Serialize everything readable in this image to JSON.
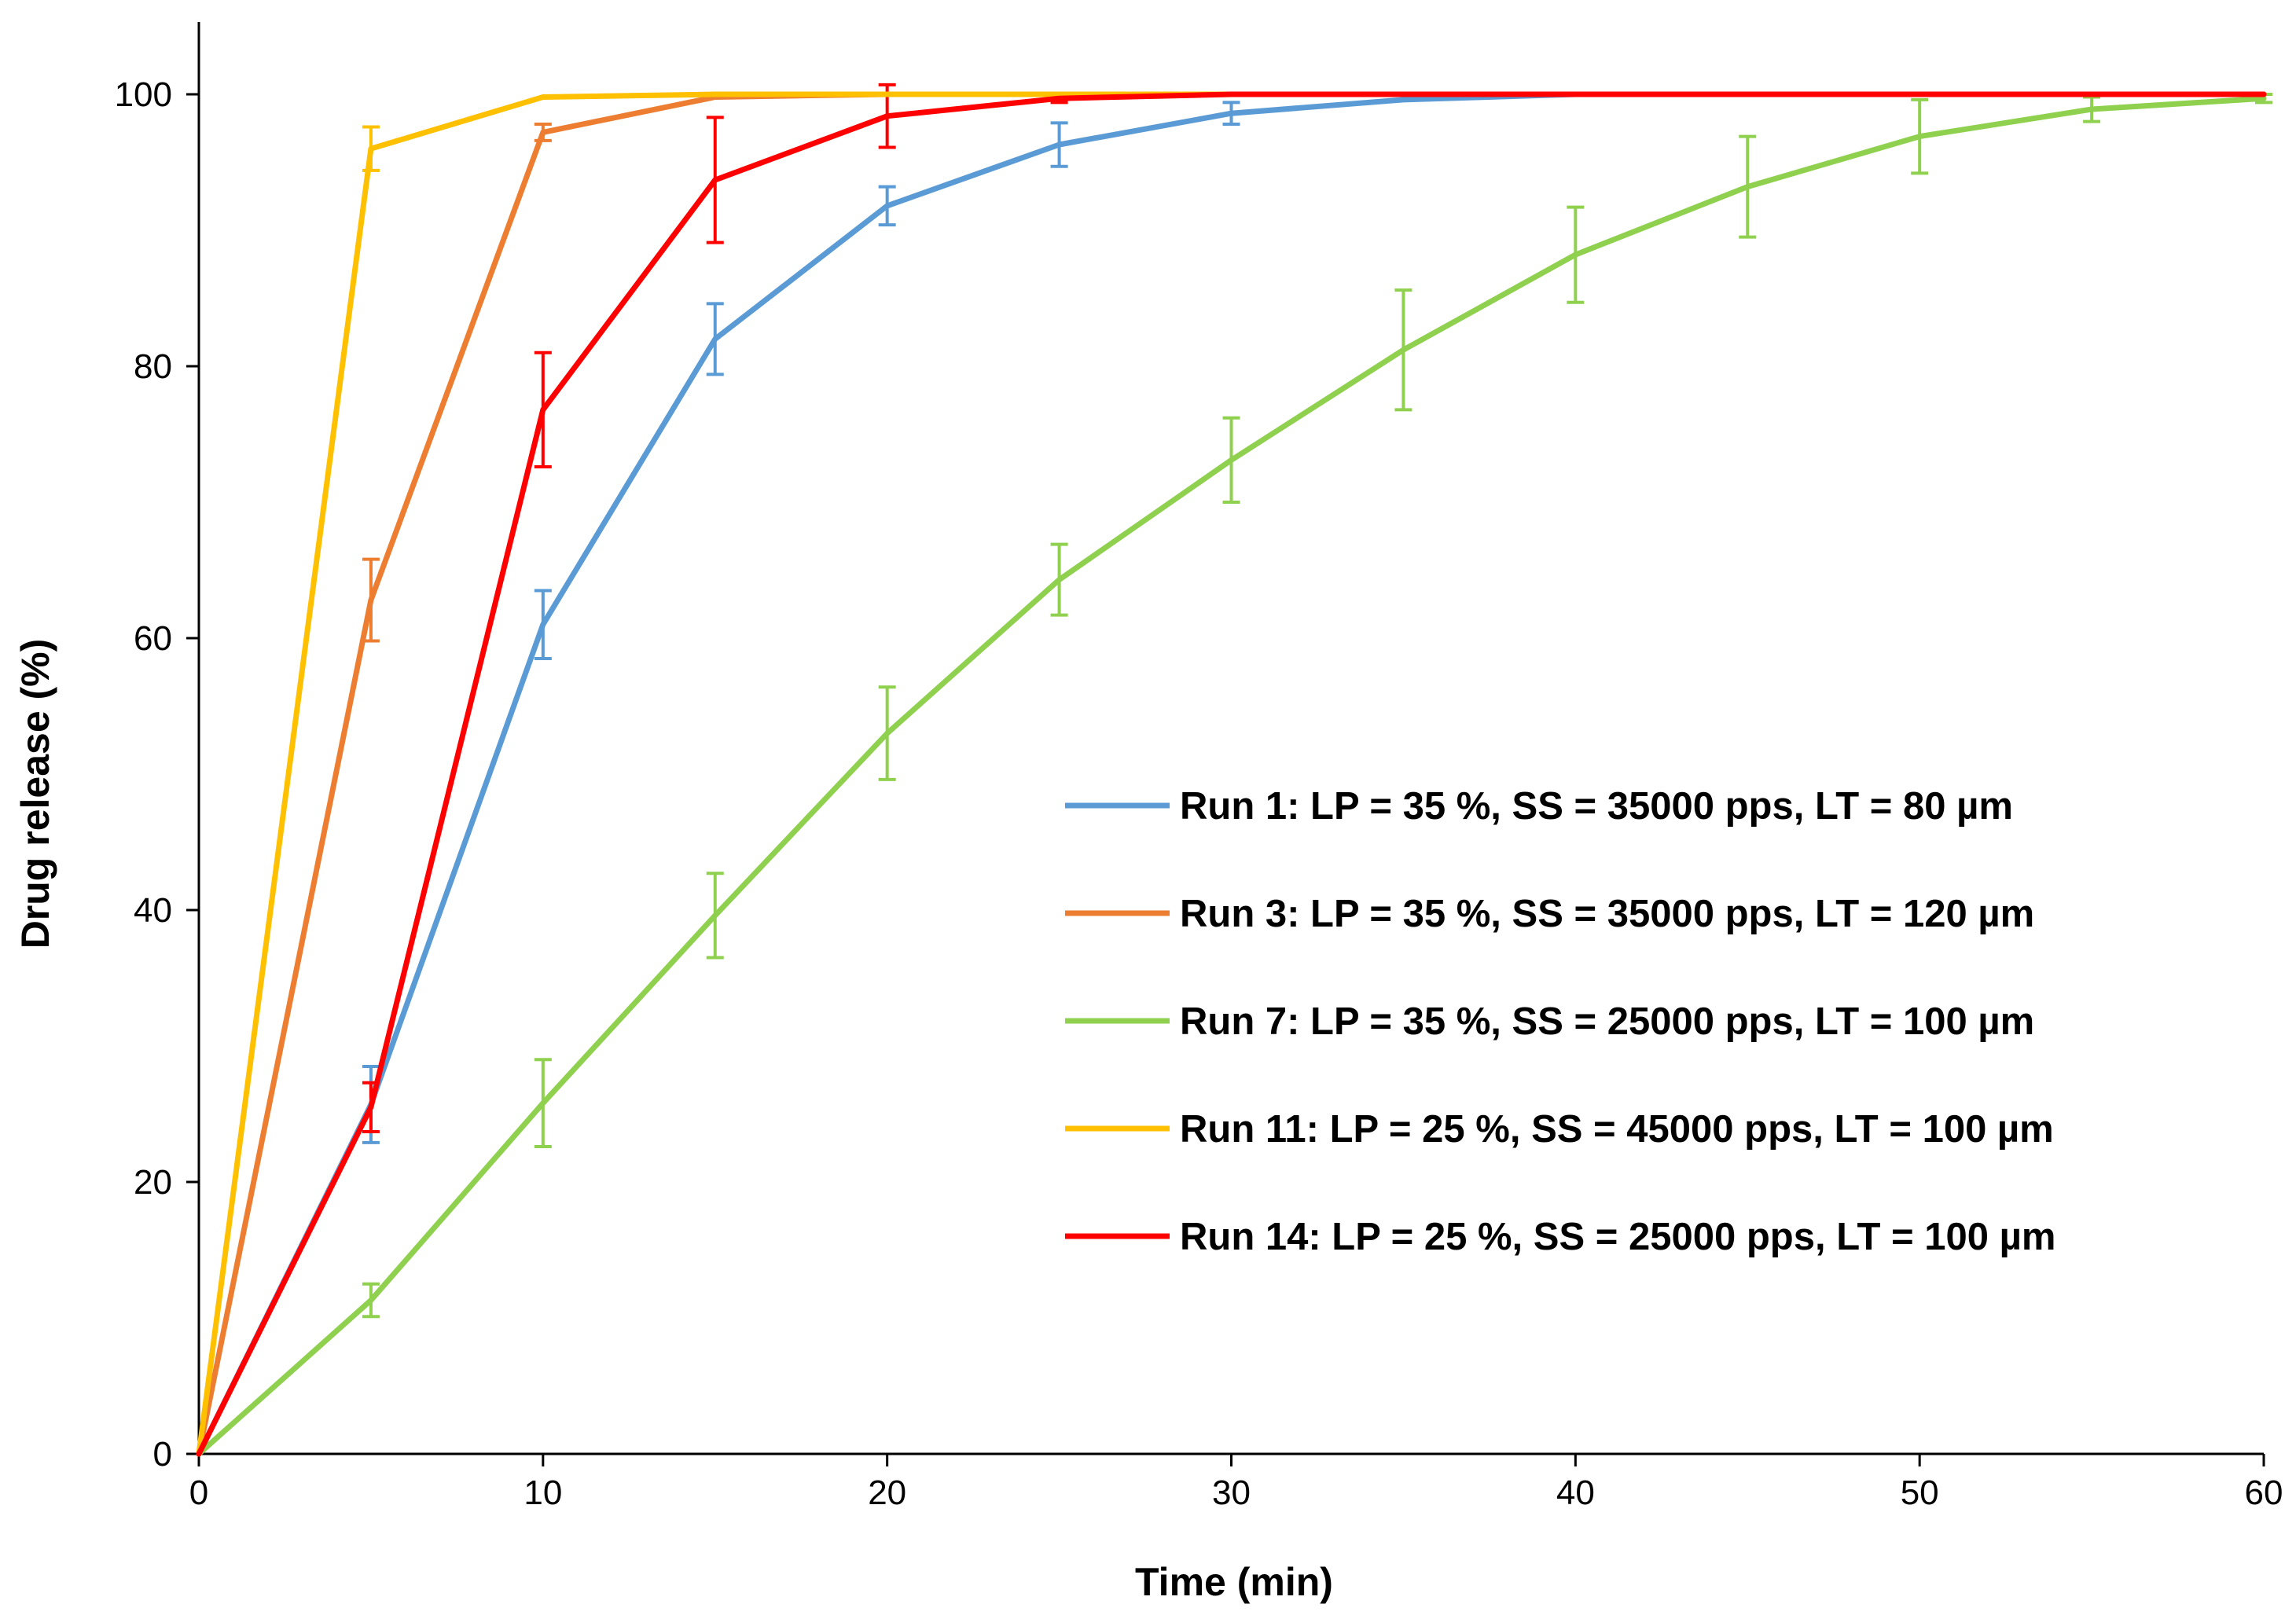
{
  "chart_data": {
    "type": "line",
    "title": "",
    "xlabel": "Time (min)",
    "ylabel": "Drug release (%)",
    "xlim": [
      0,
      60
    ],
    "ylim": [
      0,
      100
    ],
    "xticks": [
      0,
      10,
      20,
      30,
      40,
      50,
      60
    ],
    "yticks": [
      0,
      20,
      40,
      60,
      80,
      100
    ],
    "grid": false,
    "legend_position": "center-right",
    "series": [
      {
        "name": "Run 1: LP = 35 %, SS = 35000 pps, LT = 80 µm",
        "color": "#5B9BD5",
        "x": [
          0,
          5,
          10,
          15,
          20,
          25,
          30,
          35,
          40,
          45,
          50,
          55,
          60
        ],
        "y": [
          0,
          25.7,
          61.0,
          82.0,
          91.8,
          96.3,
          98.6,
          99.6,
          100,
          100,
          100,
          100,
          100
        ],
        "err": [
          0,
          2.8,
          2.5,
          2.6,
          1.4,
          1.6,
          0.8,
          0,
          0,
          0,
          0,
          0,
          0
        ]
      },
      {
        "name": "Run 3: LP = 35 %, SS = 35000 pps, LT = 120 µm",
        "color": "#ED7D31",
        "x": [
          0,
          5,
          10,
          15,
          20,
          25,
          30,
          35,
          40,
          45,
          50,
          55,
          60
        ],
        "y": [
          0,
          62.8,
          97.2,
          99.8,
          100,
          100,
          100,
          100,
          100,
          100,
          100,
          100,
          100
        ],
        "err": [
          0,
          3.0,
          0.6,
          0,
          0,
          0,
          0,
          0,
          0,
          0,
          0,
          0,
          0
        ]
      },
      {
        "name": "Run 7: LP = 35 %, SS = 25000 pps, LT = 100 µm",
        "color": "#8FD14F",
        "x": [
          0,
          5,
          10,
          15,
          20,
          25,
          30,
          35,
          40,
          45,
          50,
          55,
          60
        ],
        "y": [
          0,
          11.3,
          25.8,
          39.6,
          53.0,
          64.3,
          73.1,
          81.2,
          88.2,
          93.2,
          96.9,
          98.9,
          99.7
        ],
        "err": [
          0,
          1.2,
          3.2,
          3.1,
          3.4,
          2.6,
          3.1,
          4.4,
          3.5,
          3.7,
          2.7,
          0.9,
          0.3
        ]
      },
      {
        "name": "Run 11: LP = 25 %, SS = 45000 pps, LT = 100 µm",
        "color": "#FFC000",
        "x": [
          0,
          5,
          10,
          15,
          20,
          25,
          30,
          35,
          40,
          45,
          50,
          55,
          60
        ],
        "y": [
          0,
          96.0,
          99.8,
          100,
          100,
          100,
          100,
          100,
          100,
          100,
          100,
          100,
          100
        ],
        "err": [
          0,
          1.6,
          0,
          0,
          0,
          0,
          0,
          0,
          0,
          0,
          0,
          0,
          0
        ]
      },
      {
        "name": "Run 14: LP = 25 %, SS = 25000 pps, LT = 100 µm",
        "color": "#FF0000",
        "x": [
          0,
          5,
          10,
          15,
          20,
          25,
          30,
          35,
          40,
          45,
          50,
          55,
          60
        ],
        "y": [
          0,
          25.5,
          76.8,
          93.7,
          98.4,
          99.7,
          100,
          100,
          100,
          100,
          100,
          100,
          100
        ],
        "err": [
          0,
          1.8,
          4.2,
          4.6,
          2.3,
          0.3,
          0,
          0,
          0,
          0,
          0,
          0,
          0
        ]
      }
    ]
  }
}
